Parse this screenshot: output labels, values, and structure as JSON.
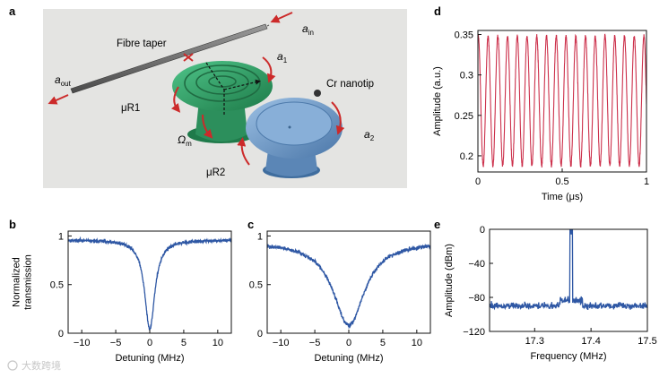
{
  "panels": {
    "a": {
      "letter": "a",
      "labels": {
        "fibre_taper": "Fibre taper",
        "a_in": "a",
        "a_in_sub": "in",
        "a_out": "a",
        "a_out_sub": "out",
        "a1": "a",
        "a1_sub": "1",
        "a2": "a",
        "a2_sub": "2",
        "cr_nanotip": "Cr nanotip",
        "ur1": "μR1",
        "ur2": "μR2",
        "omega_m": "Ω",
        "omega_m_sub": "m"
      },
      "colors": {
        "background": "#e4e4e2",
        "resonator1": "#2f9a63",
        "resonator2": "#6f98c4",
        "arrows": "#cc2a2a"
      }
    },
    "b": {
      "letter": "b"
    },
    "c": {
      "letter": "c"
    },
    "d": {
      "letter": "d"
    },
    "e": {
      "letter": "e"
    }
  },
  "watermark": "大数跨境",
  "chart_data": [
    {
      "id": "b",
      "type": "line",
      "xlabel": "Detuning (MHz)",
      "ylabel": [
        "Normalized",
        "transmission"
      ],
      "xlim": [
        -12,
        12
      ],
      "ylim": [
        0,
        1.05
      ],
      "xticks": [
        -10,
        -5,
        0,
        5,
        10
      ],
      "xtick_labels": [
        "−10",
        "−5",
        "0",
        "5",
        "10"
      ],
      "yticks": [
        0,
        0.5,
        1
      ],
      "ytick_labels": [
        "0",
        "0.5",
        "1"
      ],
      "series": [
        {
          "name": "transmission",
          "model": "lorentzian_dip",
          "baseline": 0.96,
          "depth": 0.92,
          "center": 0,
          "half_width": 0.9,
          "noise": 0.018
        }
      ],
      "color": "#2e57a4"
    },
    {
      "id": "c",
      "type": "line",
      "xlabel": "Detuning (MHz)",
      "ylabel": [],
      "xlim": [
        -12,
        12
      ],
      "ylim": [
        0,
        1.05
      ],
      "xticks": [
        -10,
        -5,
        0,
        5,
        10
      ],
      "xtick_labels": [
        "−10",
        "−5",
        "0",
        "5",
        "10"
      ],
      "yticks": [
        0,
        0.5,
        1
      ],
      "ytick_labels": [
        "0",
        "0.5",
        "1"
      ],
      "series": [
        {
          "name": "transmission",
          "model": "lorentzian_dip",
          "baseline": 0.94,
          "depth": 0.86,
          "center": 0,
          "half_width": 2.8,
          "noise": 0.02
        }
      ],
      "color": "#2e57a4"
    },
    {
      "id": "d",
      "type": "line",
      "xlabel": "Time (μs)",
      "ylabel": [
        "Amplitude (a.u.)"
      ],
      "xlim": [
        0,
        1
      ],
      "ylim": [
        0.18,
        0.355
      ],
      "xticks": [
        0,
        0.5,
        1
      ],
      "xtick_labels": [
        "0",
        "0.5",
        "1"
      ],
      "yticks": [
        0.2,
        0.25,
        0.3,
        0.35
      ],
      "ytick_labels": [
        "0.2",
        "0.25",
        "0.3",
        "0.35"
      ],
      "series": [
        {
          "name": "signal",
          "model": "sine",
          "mean": 0.268,
          "amplitude": 0.08,
          "cycles": 17.3,
          "noise": 0.003
        }
      ],
      "color": "#cc2f4a"
    },
    {
      "id": "e",
      "type": "line",
      "xlabel": "Frequency (MHz)",
      "ylabel": [
        "Amplitude (dBm)"
      ],
      "xlim": [
        17.22,
        17.5
      ],
      "ylim": [
        -120,
        0
      ],
      "xticks": [
        17.3,
        17.4,
        17.5
      ],
      "xtick_labels": [
        "17.3",
        "17.4",
        "17.5"
      ],
      "yticks": [
        -120,
        -80,
        -40,
        0
      ],
      "ytick_labels": [
        "−120",
        "−80",
        "−40",
        "0"
      ],
      "series": [
        {
          "name": "spectrum",
          "model": "noise_with_peak",
          "floor": -90,
          "noise": 4,
          "peak_x": 17.365,
          "peak_y": -8
        }
      ],
      "color": "#2e57a4"
    }
  ]
}
